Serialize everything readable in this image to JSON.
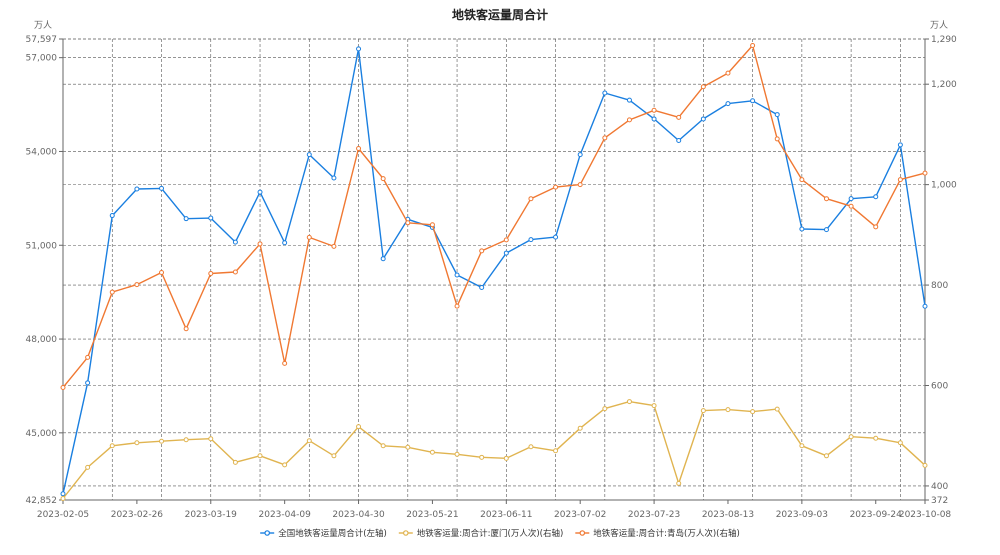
{
  "chart_data": {
    "type": "line",
    "title": "地铁客运量周合计",
    "left_unit": "万人",
    "right_unit": "万人",
    "x_tick_labels": [
      "2023-02-05",
      "2023-02-26",
      "2023-03-19",
      "2023-04-09",
      "2023-04-30",
      "2023-05-21",
      "2023-06-11",
      "2023-07-02",
      "2023-07-23",
      "2023-08-13",
      "2023-09-03",
      "2023-09-24",
      "2023-10-08"
    ],
    "x_tick_positions": [
      0,
      3,
      6,
      9,
      12,
      15,
      18,
      21,
      24,
      27,
      30,
      33,
      35
    ],
    "left_axis": {
      "min": 42852,
      "max": 57597,
      "ticks": [
        "42,852",
        "45,000",
        "48,000",
        "51,000",
        "54,000",
        "57,000",
        "57,597"
      ],
      "tick_values": [
        42852,
        45000,
        48000,
        51000,
        54000,
        57000,
        57597
      ]
    },
    "right_axis": {
      "min": 372,
      "max": 1290,
      "ticks": [
        "372",
        "400",
        "600",
        "800",
        "1,000",
        "1,200",
        "1,290"
      ],
      "tick_values": [
        372,
        400,
        600,
        800,
        1000,
        1200,
        1290
      ]
    },
    "grid": true,
    "legend_position": "bottom",
    "x": [
      "2023-02-05",
      "2023-02-12",
      "2023-02-19",
      "2023-02-26",
      "2023-03-05",
      "2023-03-12",
      "2023-03-19",
      "2023-03-26",
      "2023-04-02",
      "2023-04-09",
      "2023-04-16",
      "2023-04-23",
      "2023-04-30",
      "2023-05-07",
      "2023-05-14",
      "2023-05-21",
      "2023-05-28",
      "2023-06-04",
      "2023-06-11",
      "2023-06-18",
      "2023-06-25",
      "2023-07-02",
      "2023-07-09",
      "2023-07-16",
      "2023-07-23",
      "2023-07-30",
      "2023-08-06",
      "2023-08-13",
      "2023-08-20",
      "2023-08-27",
      "2023-09-03",
      "2023-09-10",
      "2023-09-17",
      "2023-09-24",
      "2023-10-01",
      "2023-10-08"
    ],
    "series": [
      {
        "name": "全国地铁客运量周合计(左轴)",
        "axis": "left",
        "color": "#1a7fe0",
        "values": [
          43050,
          46600,
          51950,
          52800,
          52820,
          51850,
          51870,
          51100,
          52700,
          51080,
          53900,
          53150,
          57280,
          50570,
          51830,
          51570,
          50050,
          49650,
          50750,
          51180,
          51260,
          53900,
          55870,
          55640,
          55040,
          54350,
          55040,
          55530,
          55620,
          55180,
          51520,
          51500,
          52490,
          52550,
          54210,
          49050
        ]
      },
      {
        "name": "地铁客运量:周合计:厦门(万人次)(右轴)",
        "axis": "right",
        "color": "#e0b450",
        "values": [
          375,
          437,
          480,
          486,
          489,
          492,
          494,
          447,
          460,
          442,
          490,
          460,
          518,
          480,
          477,
          467,
          463,
          457,
          455,
          478,
          470,
          515,
          554,
          568,
          560,
          405,
          550,
          552,
          548,
          553,
          480,
          460,
          498,
          495,
          486,
          441
        ]
      },
      {
        "name": "地铁客运量:周合计:青岛(万人次)(右轴)",
        "axis": "right",
        "color": "#f07832",
        "values": [
          596,
          656,
          786,
          801,
          825,
          713,
          823,
          826,
          882,
          644,
          895,
          877,
          1072,
          1012,
          924,
          920,
          758,
          868,
          890,
          972,
          995,
          1000,
          1093,
          1129,
          1148,
          1134,
          1195,
          1222,
          1277,
          1091,
          1010,
          972,
          957,
          916,
          1010,
          1023
        ]
      }
    ]
  }
}
